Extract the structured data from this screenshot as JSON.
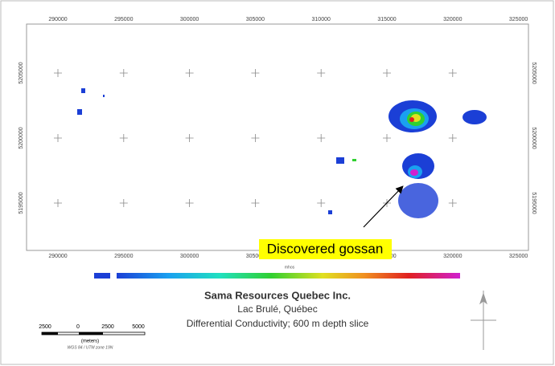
{
  "map": {
    "x_ticks": [
      "290000",
      "295000",
      "300000",
      "305000",
      "310000",
      "315000",
      "320000",
      "325000"
    ],
    "y_ticks": [
      "5205000",
      "5200000",
      "5195000"
    ],
    "legend_unit": "mhos",
    "title": "Sama Resources Quebec Inc.",
    "subtitle": "Lac Brulé, Québec",
    "caption": "Differential Conductivity; 600 m depth slice",
    "scale_bar": {
      "labels": [
        "2500",
        "0",
        "2500",
        "5000"
      ],
      "unit": "(meters)",
      "projection": "WGS 84 / UTM zone 19N"
    },
    "annotation": "Discovered gossan"
  }
}
